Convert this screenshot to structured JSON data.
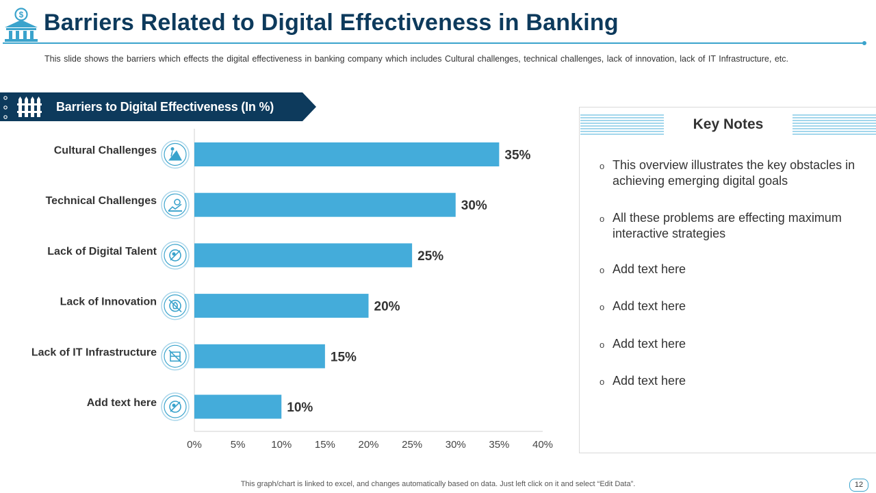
{
  "header": {
    "title": "Barriers Related to Digital Effectiveness in Banking",
    "subtitle": "This slide shows the barriers which effects the digital effectiveness  in banking company which includes Cultural challenges, technical challenges, lack of innovation,  lack of IT Infrastructure,  etc."
  },
  "banner": {
    "label": "Barriers to Digital Effectiveness (In %)"
  },
  "colors": {
    "title": "#0d3a5c",
    "accent": "#3aa3cc",
    "bar": "#44acda",
    "banner": "#0d3a5c"
  },
  "chart_data": {
    "type": "bar",
    "orientation": "horizontal",
    "categories": [
      "Cultural Challenges",
      "Technical Challenges",
      "Lack of Digital Talent",
      "Lack of Innovation",
      "Lack of IT Infrastructure",
      "Add text here"
    ],
    "values": [
      35,
      30,
      25,
      20,
      15,
      10
    ],
    "data_labels": [
      "35%",
      "30%",
      "25%",
      "20%",
      "15%",
      "10%"
    ],
    "category_icons": [
      "climbing-icon",
      "gear-growth-icon",
      "no-talent-icon",
      "innovation-icon",
      "no-infrastructure-icon",
      "blocked-icon"
    ],
    "x_ticks": [
      "0%",
      "5%",
      "10%",
      "15%",
      "20%",
      "25%",
      "30%",
      "35%",
      "40%"
    ],
    "xlim": [
      0,
      40
    ],
    "grid": false,
    "legend": "none"
  },
  "key_notes": {
    "title": "Key Notes",
    "bullet": "o",
    "items": [
      "This overview illustrates the key obstacles in achieving emerging digital goals",
      "All these problems are effecting maximum interactive strategies",
      "Add text here",
      "Add text here",
      "Add text here",
      "Add text here"
    ]
  },
  "footer": {
    "note": "This graph/chart is linked to excel,  and changes automatically based on data. Just left click on it and select “Edit Data”.",
    "page_number": "12"
  }
}
